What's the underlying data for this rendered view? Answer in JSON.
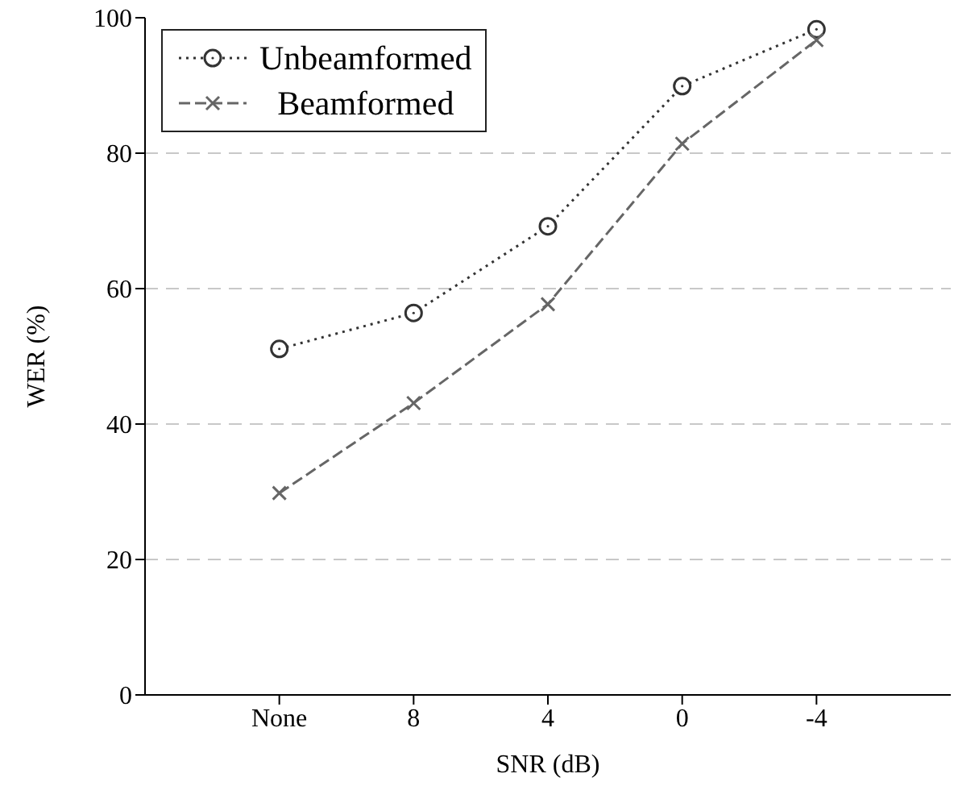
{
  "chart_data": {
    "type": "line",
    "xlabel": "SNR (dB)",
    "ylabel": "WER (%)",
    "categories": [
      "None",
      "8",
      "4",
      "0",
      "-4"
    ],
    "series": [
      {
        "name": "Unbeamformed",
        "color": "#333333",
        "marker": "circle",
        "line_style": "dotted",
        "values": [
          51.1,
          56.4,
          69.2,
          89.9,
          98.3
        ]
      },
      {
        "name": "Beamformed",
        "color": "#666666",
        "marker": "cross",
        "line_style": "dashed",
        "values": [
          29.8,
          43.1,
          57.7,
          81.4,
          96.7
        ]
      }
    ],
    "ylim": [
      0,
      100
    ],
    "yticks": [
      0,
      20,
      40,
      60,
      80,
      100
    ],
    "grid": "y",
    "legend": "top left"
  }
}
